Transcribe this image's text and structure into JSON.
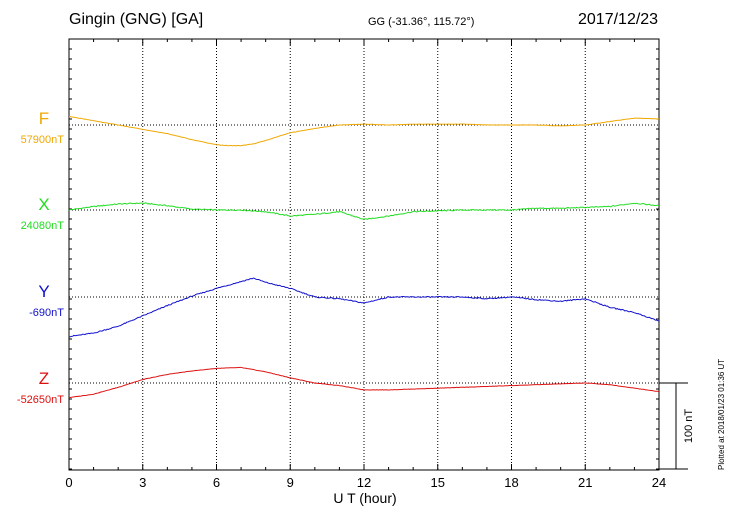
{
  "header": {
    "station": "Gingin (GNG)  [GA]",
    "coords": "GG (-31.36°, 115.72°)",
    "date": "2017/12/23"
  },
  "plotted_note": "Plotted at 2018/01/23 01:36 UT",
  "scale_label": "100 nT",
  "chart_data": {
    "type": "line",
    "title": "Gingin (GNG)  [GA]",
    "xlabel": "U T (hour)",
    "ylabel": "",
    "xlim": [
      0,
      24
    ],
    "x_ticks": [
      "0",
      "3",
      "6",
      "9",
      "12",
      "15",
      "18",
      "21",
      "24"
    ],
    "grid": true,
    "scale_bar_nT": 100,
    "series": [
      {
        "name": "F",
        "baseline_label": "57900nT",
        "baseline_nT": 57900,
        "color": "#f0a800",
        "x": [
          0,
          1,
          2,
          3,
          4,
          5,
          6,
          6.5,
          7,
          7.5,
          8,
          9,
          10,
          11,
          12,
          13,
          14,
          15,
          16,
          17,
          18,
          19,
          20,
          21,
          22,
          23,
          24
        ],
        "values": [
          57910,
          57905,
          57900,
          57895,
          57890,
          57883,
          57877,
          57876,
          57876,
          57878,
          57882,
          57891,
          57896,
          57900,
          57901,
          57900,
          57901,
          57901,
          57901,
          57900,
          57900,
          57900,
          57899,
          57900,
          57904,
          57908,
          57907
        ]
      },
      {
        "name": "X",
        "baseline_label": "24080nT",
        "baseline_nT": 24080,
        "color": "#22dd22",
        "x": [
          0,
          1,
          2,
          3,
          4,
          5,
          6,
          7,
          8,
          9,
          10,
          11,
          12,
          13,
          14,
          15,
          16,
          17,
          18,
          19,
          20,
          21,
          22,
          23,
          24
        ],
        "values": [
          24080,
          24084,
          24087,
          24088,
          24085,
          24081,
          24080,
          24080,
          24078,
          24073,
          24075,
          24078,
          24069,
          24073,
          24078,
          24079,
          24080,
          24080,
          24080,
          24082,
          24082,
          24083,
          24084,
          24088,
          24085
        ]
      },
      {
        "name": "Y",
        "baseline_label": "-690nT",
        "baseline_nT": -690,
        "color": "#1010cc",
        "x": [
          0,
          1,
          2,
          3,
          4,
          5,
          6,
          7,
          7.5,
          8,
          9,
          10,
          11,
          12,
          13,
          14,
          15,
          16,
          17,
          18,
          19,
          20,
          21,
          22,
          23,
          24
        ],
        "values": [
          -736,
          -732,
          -724,
          -712,
          -700,
          -689,
          -680,
          -672,
          -668,
          -673,
          -680,
          -690,
          -692,
          -697,
          -690,
          -690,
          -690,
          -690,
          -692,
          -690,
          -693,
          -695,
          -692,
          -702,
          -708,
          -718
        ]
      },
      {
        "name": "Z",
        "baseline_label": "-52650nT",
        "baseline_nT": -52650,
        "color": "#dd1010",
        "x": [
          0,
          1,
          2,
          3,
          4,
          5,
          6,
          7,
          8,
          9,
          10,
          11,
          12,
          13,
          14,
          15,
          16,
          17,
          18,
          19,
          20,
          21,
          22,
          23,
          24
        ],
        "values": [
          -52667,
          -52663,
          -52655,
          -52646,
          -52640,
          -52636,
          -52633,
          -52632,
          -52637,
          -52644,
          -52650,
          -52653,
          -52658,
          -52658,
          -52657,
          -52656,
          -52655,
          -52654,
          -52653,
          -52652,
          -52651,
          -52650,
          -52652,
          -52656,
          -52660
        ]
      }
    ]
  }
}
